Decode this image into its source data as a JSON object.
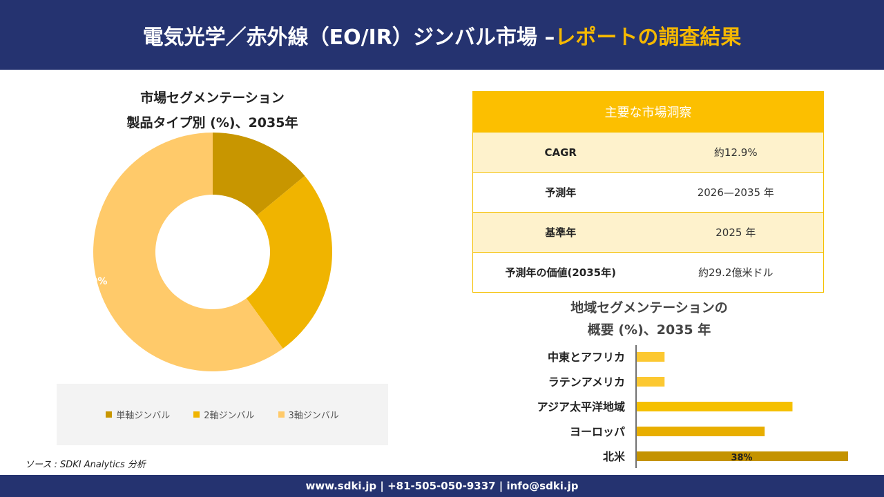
{
  "header": {
    "title_main": "電気光学／赤外線（EO/IR）ジンバル市場 –",
    "title_highlight": "レポートの調査結果"
  },
  "donut": {
    "title_line1": "市場セグメンテーション",
    "title_line2": "製品タイプ別 (%)、2035年"
  },
  "insights": {
    "title": "主要な市場洞察",
    "rows": [
      {
        "label": "CAGR",
        "value": "約12.9%"
      },
      {
        "label": "予測年",
        "value": "2026—2035 年"
      },
      {
        "label": "基準年",
        "value": "2025 年"
      },
      {
        "label": "予測年の価値(2035年)",
        "value": "約29.2億米ドル"
      }
    ]
  },
  "regional": {
    "title_line1": "地域セグメンテーションの",
    "title_line2": "概要 (%)、2035 年"
  },
  "source": "ソース : SDKI Analytics 分析",
  "footer": {
    "contact": "www.sdki.jp | +81-505-050-9337 | info@sdki.jp"
  },
  "chart_data": [
    {
      "type": "pie",
      "title": "市場セグメンテーション 製品タイプ別 (%)、2035年",
      "categories": [
        "単軸ジンバル",
        "2軸ジンバル",
        "3軸ジンバル"
      ],
      "values": [
        14,
        26,
        60
      ],
      "colors": [
        "#C89600",
        "#F0B400",
        "#FFCA6A"
      ],
      "data_labels": [
        "",
        "",
        "60%"
      ],
      "hole": true,
      "legend": "bottom"
    },
    {
      "type": "bar",
      "orientation": "horizontal",
      "title": "地域セグメンテーションの概要 (%)、2035 年",
      "categories": [
        "中東とアフリカ",
        "ラテンアメリカ",
        "アジア太平洋地域",
        "ヨーロッパ",
        "北米"
      ],
      "values": [
        5,
        5,
        28,
        23,
        38
      ],
      "colors": [
        "#FCC831",
        "#FCC831",
        "#F5C000",
        "#E8AE00",
        "#C49300"
      ],
      "data_labels": [
        "",
        "",
        "",
        "",
        "38%"
      ],
      "grid": false
    }
  ]
}
